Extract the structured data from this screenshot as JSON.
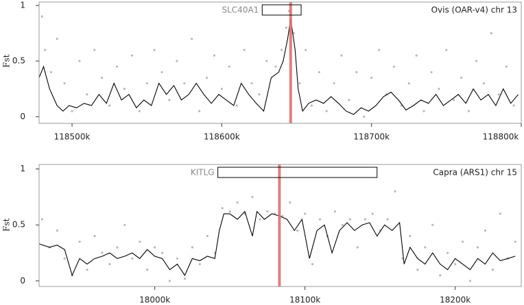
{
  "chart_data": [
    {
      "type": "scatter",
      "title": "Ovis (OAR-v4) chr 13",
      "y_label": "Fst",
      "xlim": [
        118478,
        118800
      ],
      "ylim": [
        -0.06,
        1.03
      ],
      "xticks": [
        {
          "value": 118500,
          "label": "118500k"
        },
        {
          "value": 118600,
          "label": "118600k"
        },
        {
          "value": 118700,
          "label": "118700k"
        },
        {
          "value": 118800,
          "label": "118800k"
        }
      ],
      "yticks": [
        0,
        0.5,
        1
      ],
      "gene": {
        "label": "SLC40A1",
        "start": 118627,
        "end": 118653
      },
      "highlight": {
        "x": 118646,
        "color": "#e07070"
      },
      "series": [
        {
          "mode": "points",
          "color": "#b8b8b8",
          "x": [
            118480,
            118482,
            118486,
            118490,
            118495,
            118500,
            118505,
            118510,
            118515,
            118520,
            118525,
            118530,
            118535,
            118540,
            118545,
            118550,
            118555,
            118560,
            118565,
            118570,
            118575,
            118580,
            118585,
            118590,
            118595,
            118600,
            118605,
            118610,
            118615,
            118620,
            118625,
            118630,
            118636,
            118640,
            118643,
            118645,
            118648,
            118652,
            118656,
            118660,
            118665,
            118670,
            118675,
            118680,
            118685,
            118690,
            118695,
            118700,
            118705,
            118710,
            118715,
            118720,
            118725,
            118730,
            118735,
            118740,
            118745,
            118750,
            118755,
            118760,
            118765,
            118770,
            118775,
            118780,
            118785,
            118790,
            118795
          ],
          "values": [
            0.9,
            0.6,
            0.4,
            0.7,
            0.3,
            0.05,
            0.5,
            0.2,
            0.6,
            0.35,
            0.1,
            0.45,
            0.25,
            0.55,
            0.05,
            0.3,
            0.6,
            0.4,
            0.15,
            0.5,
            0.3,
            0.7,
            0.05,
            0.35,
            0.55,
            0.25,
            0.45,
            0.1,
            0.6,
            0.3,
            0.2,
            0.5,
            0.45,
            0.6,
            0.8,
            0.95,
            0.75,
            0.3,
            0.6,
            0.1,
            0.4,
            0.05,
            0.3,
            0.55,
            0.15,
            0.4,
            0.0,
            0.35,
            0.6,
            0.2,
            0.45,
            0.1,
            0.3,
            0.55,
            0.05,
            0.4,
            0.25,
            0.6,
            0.15,
            0.35,
            0.05,
            0.5,
            0.3,
            0.75,
            0.2,
            0.45,
            0.1
          ]
        },
        {
          "mode": "line",
          "color": "#000000",
          "x": [
            118478,
            118481,
            118485,
            118490,
            118494,
            118498,
            118503,
            118508,
            118513,
            118518,
            118523,
            118528,
            118533,
            118538,
            118543,
            118548,
            118553,
            118558,
            118563,
            118568,
            118573,
            118578,
            118583,
            118588,
            118593,
            118598,
            118603,
            118608,
            118613,
            118618,
            118623,
            118628,
            118633,
            118638,
            118641,
            118644,
            118646,
            118649,
            118651,
            118654,
            118658,
            118663,
            118668,
            118673,
            118678,
            118683,
            118688,
            118693,
            118698,
            118703,
            118708,
            118713,
            118718,
            118723,
            118728,
            118733,
            118738,
            118743,
            118748,
            118753,
            118758,
            118763,
            118768,
            118773,
            118778,
            118783,
            118788,
            118793,
            118798
          ],
          "values": [
            0.35,
            0.45,
            0.25,
            0.1,
            0.05,
            0.1,
            0.08,
            0.12,
            0.1,
            0.2,
            0.12,
            0.3,
            0.15,
            0.2,
            0.08,
            0.15,
            0.1,
            0.3,
            0.2,
            0.28,
            0.15,
            0.2,
            0.3,
            0.2,
            0.12,
            0.2,
            0.15,
            0.1,
            0.3,
            0.2,
            0.12,
            0.05,
            0.35,
            0.4,
            0.5,
            0.7,
            0.88,
            0.6,
            0.25,
            0.05,
            0.12,
            0.15,
            0.12,
            0.18,
            0.12,
            0.05,
            0.02,
            0.08,
            0.05,
            0.1,
            0.18,
            0.22,
            0.15,
            0.06,
            0.1,
            0.15,
            0.12,
            0.2,
            0.1,
            0.15,
            0.2,
            0.12,
            0.25,
            0.15,
            0.2,
            0.1,
            0.25,
            0.12,
            0.2
          ]
        }
      ]
    },
    {
      "type": "scatter",
      "title": "Capra (ARS1) chr 15",
      "y_label": "Fst",
      "xlim": [
        17923,
        18244
      ],
      "ylim": [
        -0.05,
        1.04
      ],
      "xticks": [
        {
          "value": 18000,
          "label": "18000k"
        },
        {
          "value": 18100,
          "label": "18100k"
        },
        {
          "value": 18200,
          "label": "18200k"
        }
      ],
      "yticks": [
        0,
        0.5,
        1
      ],
      "gene": {
        "label": "KITLG",
        "start": 18042,
        "end": 18148
      },
      "highlight": {
        "x": 18083,
        "color": "#e07070"
      },
      "series": [
        {
          "mode": "points",
          "color": "#b8b8b8",
          "x": [
            17925,
            17930,
            17935,
            17940,
            17945,
            17950,
            17955,
            17960,
            17965,
            17970,
            17975,
            17980,
            17985,
            17990,
            17995,
            18000,
            18005,
            18010,
            18015,
            18020,
            18025,
            18030,
            18035,
            18040,
            18045,
            18050,
            18055,
            18060,
            18065,
            18070,
            18075,
            18080,
            18085,
            18090,
            18095,
            18100,
            18105,
            18110,
            18115,
            18120,
            18125,
            18130,
            18135,
            18140,
            18145,
            18150,
            18155,
            18160,
            18165,
            18170,
            18175,
            18180,
            18185,
            18190,
            18195,
            18200,
            18205,
            18210,
            18215,
            18220,
            18225,
            18230,
            18235,
            18240
          ],
          "values": [
            0.55,
            0.3,
            0.45,
            0.2,
            0.05,
            0.35,
            0.1,
            0.4,
            0.25,
            0.15,
            0.3,
            0.5,
            0.2,
            0.35,
            0.1,
            0.3,
            0.25,
            0.0,
            0.2,
            0.02,
            0.3,
            0.15,
            0.4,
            0.25,
            0.65,
            0.62,
            0.7,
            0.6,
            0.75,
            0.55,
            0.62,
            0.6,
            0.58,
            0.7,
            0.45,
            0.6,
            0.15,
            0.55,
            0.4,
            0.62,
            0.5,
            0.55,
            0.3,
            0.55,
            0.6,
            0.45,
            0.55,
            0.8,
            0.2,
            0.4,
            0.1,
            0.3,
            0.5,
            0.05,
            0.25,
            0.15,
            0.35,
            0.0,
            0.3,
            0.45,
            0.1,
            0.6,
            0.2,
            0.35
          ]
        },
        {
          "mode": "line",
          "color": "#000000",
          "x": [
            17923,
            17930,
            17935,
            17940,
            17945,
            17950,
            17955,
            17960,
            17965,
            17970,
            17975,
            17980,
            17985,
            17990,
            17995,
            18000,
            18005,
            18010,
            18015,
            18020,
            18025,
            18030,
            18035,
            18040,
            18043,
            18046,
            18050,
            18055,
            18060,
            18065,
            18068,
            18073,
            18078,
            18083,
            18088,
            18093,
            18098,
            18103,
            18108,
            18113,
            18118,
            18123,
            18128,
            18133,
            18138,
            18143,
            18148,
            18153,
            18158,
            18163,
            18166,
            18170,
            18175,
            18180,
            18185,
            18190,
            18195,
            18200,
            18205,
            18210,
            18215,
            18220,
            18225,
            18230,
            18235,
            18240
          ],
          "values": [
            0.33,
            0.3,
            0.32,
            0.28,
            0.05,
            0.2,
            0.15,
            0.2,
            0.22,
            0.25,
            0.2,
            0.22,
            0.25,
            0.2,
            0.28,
            0.22,
            0.2,
            0.1,
            0.15,
            0.05,
            0.2,
            0.18,
            0.22,
            0.2,
            0.45,
            0.6,
            0.6,
            0.55,
            0.62,
            0.4,
            0.62,
            0.55,
            0.6,
            0.58,
            0.55,
            0.45,
            0.55,
            0.2,
            0.45,
            0.5,
            0.25,
            0.45,
            0.52,
            0.45,
            0.5,
            0.52,
            0.4,
            0.5,
            0.45,
            0.52,
            0.15,
            0.3,
            0.2,
            0.15,
            0.25,
            0.15,
            0.1,
            0.2,
            0.15,
            0.1,
            0.2,
            0.15,
            0.25,
            0.18,
            0.2,
            0.22
          ]
        }
      ]
    }
  ]
}
